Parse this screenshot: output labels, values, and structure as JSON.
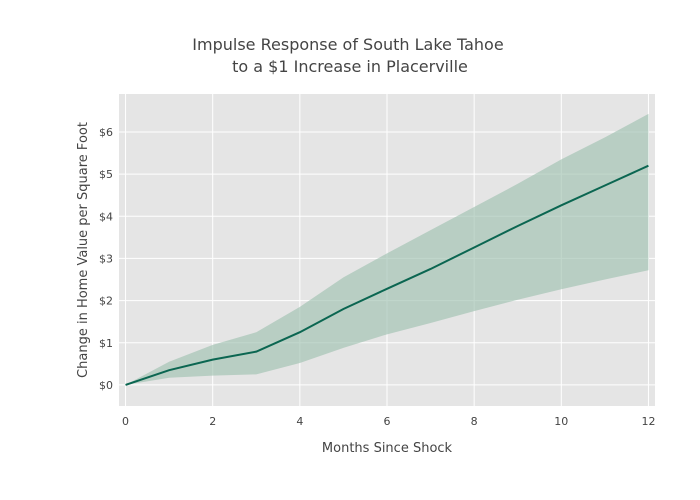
{
  "chart_data": {
    "type": "area",
    "title_lines": [
      "Impulse Response of South Lake Tahoe",
      "to a $1 Increase in Placerville"
    ],
    "xlabel": "Months Since Shock",
    "ylabel": "Change in Home Value per Square Foot",
    "xlim": [
      -0.15,
      12.15
    ],
    "ylim": [
      -0.5,
      6.9
    ],
    "x_ticks": [
      0,
      2,
      4,
      6,
      8,
      10,
      12
    ],
    "x_tick_labels": [
      "0",
      "2",
      "4",
      "6",
      "8",
      "10",
      "12"
    ],
    "y_ticks": [
      0,
      1,
      2,
      3,
      4,
      5,
      6
    ],
    "y_tick_labels": [
      "$0",
      "$1",
      "$2",
      "$3",
      "$4",
      "$5",
      "$6"
    ],
    "grid": true,
    "legend": "none",
    "x": [
      0,
      1,
      2,
      3,
      4,
      5,
      6,
      7,
      8,
      9,
      10,
      11,
      12
    ],
    "series": [
      {
        "role": "estimate",
        "values": [
          0,
          0.35,
          0.6,
          0.79,
          1.25,
          1.8,
          2.28,
          2.75,
          3.26,
          3.77,
          4.26,
          4.73,
          5.2
        ]
      },
      {
        "role": "upper_bound",
        "values": [
          0,
          0.55,
          0.95,
          1.25,
          1.85,
          2.55,
          3.12,
          3.67,
          4.22,
          4.77,
          5.35,
          5.87,
          6.43
        ]
      },
      {
        "role": "lower_bound",
        "values": [
          0,
          0.17,
          0.22,
          0.25,
          0.52,
          0.88,
          1.2,
          1.47,
          1.75,
          2.02,
          2.27,
          2.5,
          2.72
        ]
      }
    ],
    "colors": {
      "plot_background": "#e5e5e5",
      "grid": "#ffffff",
      "band_fill": "#9fc1b0",
      "line": "#0b6651"
    }
  }
}
